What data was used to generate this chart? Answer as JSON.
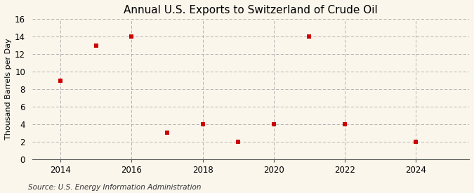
{
  "title": "Annual U.S. Exports to Switzerland of Crude Oil",
  "ylabel": "Thousand Barrels per Day",
  "source": "Source: U.S. Energy Information Administration",
  "x_values": [
    2014,
    2015,
    2016,
    2017,
    2018,
    2019,
    2020,
    2021,
    2022,
    2024
  ],
  "y_values": [
    9,
    13,
    14,
    3,
    4,
    2,
    4,
    14,
    4,
    2
  ],
  "marker_color": "#cc0000",
  "marker": "s",
  "marker_size": 4,
  "xlim": [
    2013.2,
    2025.5
  ],
  "ylim": [
    0,
    16
  ],
  "yticks": [
    0,
    2,
    4,
    6,
    8,
    10,
    12,
    14,
    16
  ],
  "xticks": [
    2014,
    2016,
    2018,
    2020,
    2022,
    2024
  ],
  "background_color": "#faf6ec",
  "grid_color": "#aaaaaa",
  "title_fontsize": 11,
  "label_fontsize": 8,
  "tick_fontsize": 8.5,
  "source_fontsize": 7.5
}
